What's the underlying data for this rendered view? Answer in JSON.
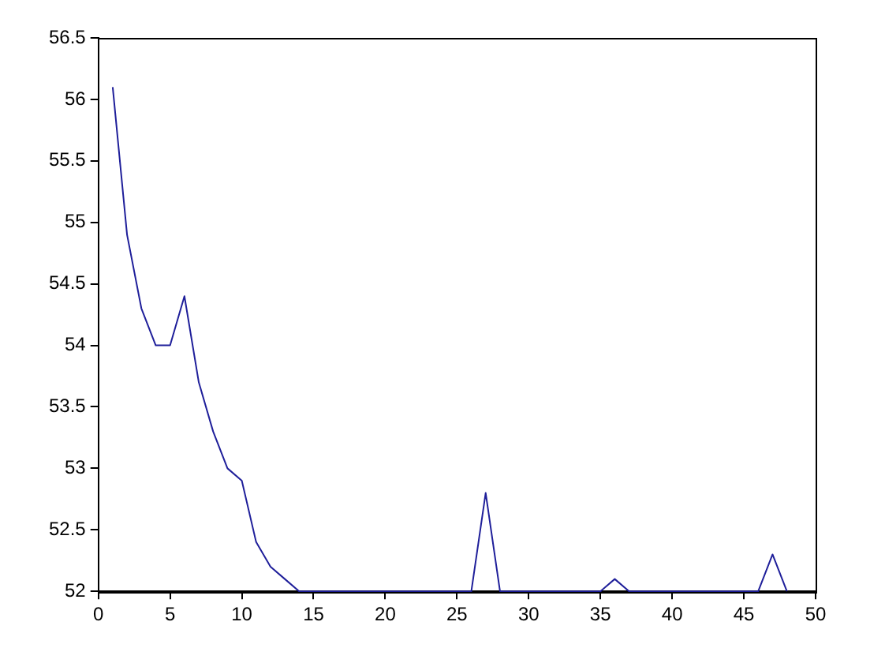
{
  "chart_data": {
    "type": "line",
    "x": [
      1,
      2,
      3,
      4,
      5,
      6,
      7,
      8,
      9,
      10,
      11,
      12,
      13,
      14,
      15,
      16,
      17,
      18,
      19,
      20,
      21,
      22,
      23,
      24,
      25,
      26,
      27,
      28,
      29,
      30,
      31,
      32,
      33,
      34,
      35,
      36,
      37,
      38,
      39,
      40,
      41,
      42,
      43,
      44,
      45,
      46,
      47,
      48
    ],
    "series": [
      {
        "color": "#1f1f9a",
        "values": [
          56.1,
          54.9,
          54.3,
          54.0,
          54.0,
          54.4,
          53.7,
          53.3,
          53.0,
          52.9,
          52.4,
          52.2,
          52.1,
          52.0,
          52,
          52,
          52,
          52,
          52,
          52,
          52,
          52,
          52,
          52,
          52,
          52,
          52.8,
          52,
          52,
          52,
          52,
          52,
          52,
          52,
          52,
          52.1,
          52,
          52,
          52,
          52,
          52,
          52,
          52,
          52,
          52,
          52,
          52.3,
          52
        ]
      }
    ],
    "xlim": [
      0,
      50
    ],
    "xticks": [
      0,
      5,
      10,
      15,
      20,
      25,
      30,
      35,
      40,
      45,
      50
    ],
    "ylim": [
      52,
      56.5
    ],
    "yticks": [
      52,
      52.5,
      53,
      53.5,
      54,
      54.5,
      55,
      55.5,
      56,
      56.5
    ],
    "grid": false,
    "legend": false,
    "marker": "none",
    "line_style": "solid"
  }
}
